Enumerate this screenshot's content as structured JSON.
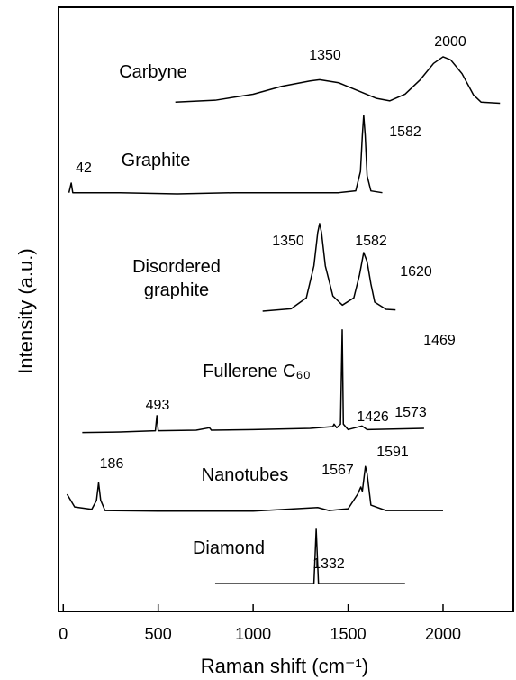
{
  "chart_data": {
    "type": "line",
    "xlabel": "Raman shift (cm⁻¹)",
    "ylabel": "Intensity (a.u.)",
    "xlim": [
      -25,
      2370
    ],
    "xticks": [
      0,
      500,
      1000,
      1500,
      2000
    ],
    "ylim": [
      0,
      100
    ],
    "series": [
      {
        "name": "Carbyne",
        "color": "#000000",
        "peaks": [
          1350,
          2000
        ],
        "x": [
          590,
          800,
          1000,
          1150,
          1300,
          1350,
          1450,
          1550,
          1650,
          1720,
          1800,
          1880,
          1950,
          2000,
          2040,
          2100,
          2160,
          2200,
          2300
        ],
        "values": [
          84.3,
          84.6,
          85.6,
          86.9,
          87.8,
          88.0,
          87.5,
          86.2,
          84.9,
          84.5,
          85.6,
          88.0,
          90.7,
          91.8,
          91.3,
          89.0,
          85.5,
          84.3,
          84.1
        ]
      },
      {
        "name": "Graphite",
        "color": "#000000",
        "peaks": [
          42,
          1582
        ],
        "x": [
          30,
          42,
          50,
          300,
          600,
          900,
          1200,
          1450,
          1540,
          1565,
          1575,
          1582,
          1590,
          1600,
          1620,
          1680
        ],
        "values": [
          69.3,
          70.9,
          69.3,
          69.3,
          69.1,
          69.3,
          69.3,
          69.3,
          69.6,
          72.8,
          78.8,
          82.1,
          78.8,
          72.1,
          69.6,
          69.3
        ]
      },
      {
        "name": "Disordered graphite",
        "color": "#000000",
        "peaks": [
          1350,
          1582,
          1620
        ],
        "x": [
          1050,
          1200,
          1280,
          1320,
          1340,
          1350,
          1360,
          1380,
          1420,
          1470,
          1530,
          1560,
          1582,
          1600,
          1620,
          1640,
          1700,
          1750
        ],
        "values": [
          49.7,
          50.1,
          51.9,
          57.2,
          62.7,
          64.2,
          62.7,
          57.2,
          52.2,
          50.7,
          51.9,
          55.7,
          59.4,
          57.9,
          54.2,
          51.2,
          50.0,
          49.9
        ]
      },
      {
        "name": "Fullerene C₆₀",
        "color": "#000000",
        "peaks": [
          493,
          1426,
          1469,
          1573
        ],
        "x": [
          100,
          300,
          485,
          493,
          500,
          700,
          770,
          780,
          1000,
          1300,
          1420,
          1426,
          1440,
          1460,
          1469,
          1475,
          1500,
          1573,
          1600,
          1900
        ],
        "values": [
          29.6,
          29.7,
          29.9,
          32.4,
          29.9,
          30.0,
          30.4,
          30.0,
          30.1,
          30.3,
          30.6,
          31.0,
          30.4,
          31.0,
          46.6,
          31.0,
          30.1,
          30.7,
          30.1,
          30.3
        ]
      },
      {
        "name": "Nanotubes",
        "color": "#000000",
        "peaks": [
          186,
          1567,
          1591
        ],
        "x": [
          20,
          60,
          150,
          175,
          186,
          197,
          220,
          500,
          1000,
          1340,
          1400,
          1500,
          1550,
          1567,
          1575,
          1591,
          1600,
          1620,
          1700,
          2000
        ],
        "values": [
          19.4,
          17.3,
          16.9,
          18.4,
          21.3,
          18.4,
          16.7,
          16.6,
          16.6,
          17.2,
          16.7,
          17.0,
          19.4,
          20.6,
          19.9,
          24.0,
          22.8,
          17.6,
          16.7,
          16.7
        ]
      },
      {
        "name": "Diamond",
        "color": "#000000",
        "peaks": [
          1332
        ],
        "x": [
          800,
          1320,
          1332,
          1344,
          1800
        ],
        "values": [
          4.6,
          4.6,
          13.6,
          4.6,
          4.6
        ]
      }
    ]
  }
}
